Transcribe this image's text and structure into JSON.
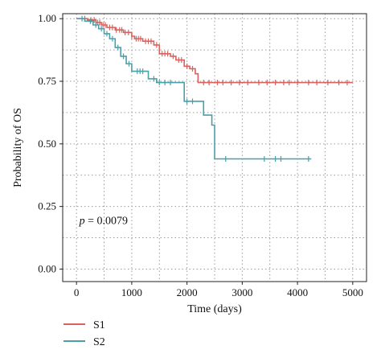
{
  "chart_data": {
    "type": "line",
    "xlabel": "Time (days)",
    "ylabel": "Probability of OS",
    "xlim": [
      -250,
      5250
    ],
    "ylim": [
      -0.05,
      1.02
    ],
    "x_ticks": [
      0,
      1000,
      2000,
      3000,
      4000,
      5000
    ],
    "x_tick_labels": [
      "0",
      "1000",
      "2000",
      "3000",
      "4000",
      "5000"
    ],
    "y_ticks": [
      0.0,
      0.25,
      0.5,
      0.75,
      1.0
    ],
    "y_tick_labels": [
      "0.00",
      "0.25",
      "0.50",
      "0.75",
      "1.00"
    ],
    "grid": "dotted, minor and major",
    "annotation": {
      "italic": "p",
      "text": " = 0.0079",
      "x": 50,
      "y": 0.18
    },
    "legend_position": "bottom-left, below plot",
    "series": [
      {
        "name": "S1",
        "color": "#d9625e",
        "steps": [
          [
            0,
            1.0
          ],
          [
            200,
            0.995
          ],
          [
            350,
            0.985
          ],
          [
            450,
            0.975
          ],
          [
            550,
            0.965
          ],
          [
            700,
            0.955
          ],
          [
            850,
            0.945
          ],
          [
            1000,
            0.93
          ],
          [
            1050,
            0.92
          ],
          [
            1200,
            0.91
          ],
          [
            1400,
            0.895
          ],
          [
            1500,
            0.86
          ],
          [
            1700,
            0.85
          ],
          [
            1800,
            0.835
          ],
          [
            1950,
            0.81
          ],
          [
            2050,
            0.8
          ],
          [
            2150,
            0.78
          ],
          [
            2200,
            0.745
          ],
          [
            5000,
            0.745
          ]
        ],
        "censor_marks": [
          150,
          260,
          320,
          380,
          420,
          480,
          520,
          600,
          650,
          720,
          780,
          820,
          880,
          940,
          1000,
          1080,
          1120,
          1160,
          1250,
          1300,
          1350,
          1450,
          1550,
          1600,
          1650,
          1750,
          1850,
          1900,
          2000,
          2100,
          2300,
          2400,
          2550,
          2650,
          2800,
          2950,
          3100,
          3300,
          3450,
          3600,
          3750,
          3850,
          4000,
          4200,
          4350,
          4550,
          4750,
          4900
        ]
      },
      {
        "name": "S2",
        "color": "#4aa0a8",
        "steps": [
          [
            0,
            1.0
          ],
          [
            150,
            0.99
          ],
          [
            300,
            0.975
          ],
          [
            400,
            0.96
          ],
          [
            500,
            0.94
          ],
          [
            600,
            0.92
          ],
          [
            700,
            0.885
          ],
          [
            800,
            0.85
          ],
          [
            900,
            0.82
          ],
          [
            1000,
            0.79
          ],
          [
            1300,
            0.76
          ],
          [
            1450,
            0.745
          ],
          [
            1950,
            0.67
          ],
          [
            2300,
            0.615
          ],
          [
            2450,
            0.575
          ],
          [
            2500,
            0.44
          ],
          [
            4250,
            0.44
          ]
        ],
        "censor_marks": [
          100,
          250,
          350,
          450,
          550,
          650,
          750,
          850,
          950,
          1100,
          1150,
          1200,
          1400,
          1500,
          1600,
          1700,
          2000,
          2100,
          2700,
          3400,
          3600,
          3700,
          4200
        ]
      }
    ]
  }
}
